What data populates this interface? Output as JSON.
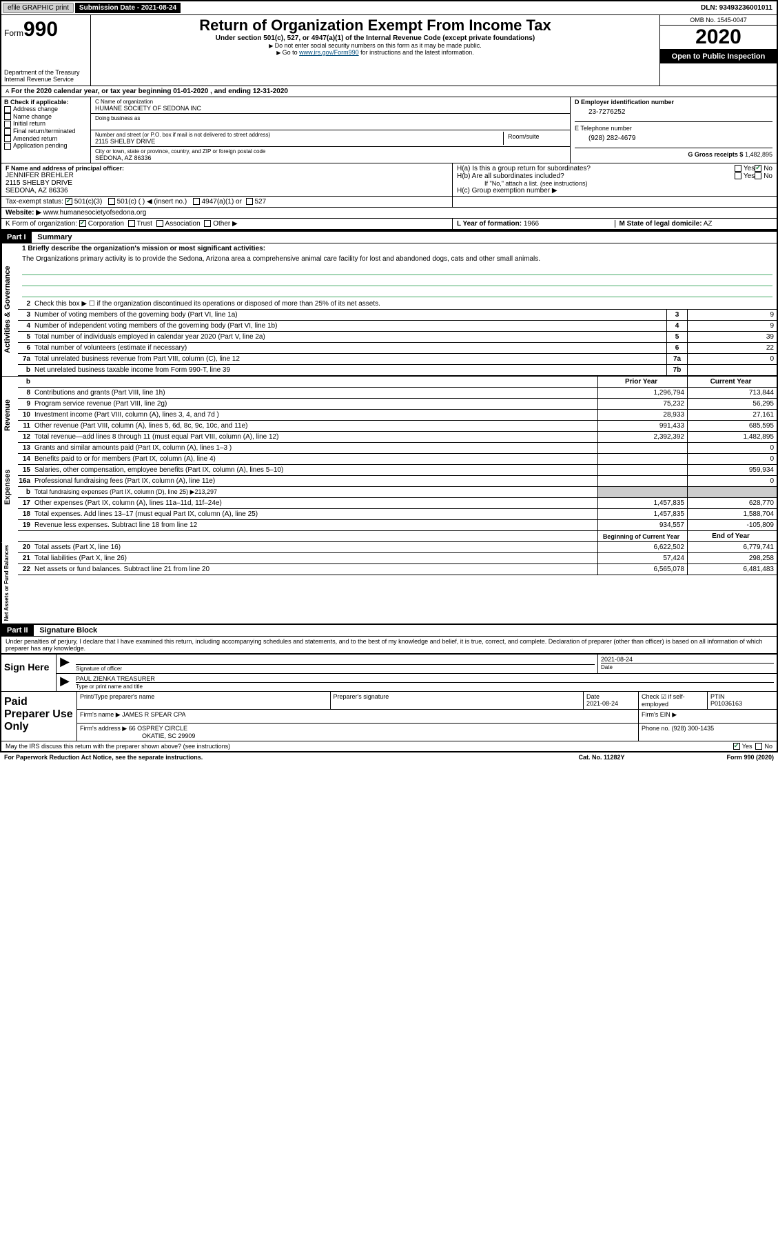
{
  "topbar": {
    "efile": "efile GRAPHIC print",
    "submission_label": "Submission Date - 2021-08-24",
    "dln": "DLN: 93493236001011"
  },
  "header": {
    "form_word": "Form",
    "form_num": "990",
    "dept1": "Department of the Treasury",
    "dept2": "Internal Revenue Service",
    "title": "Return of Organization Exempt From Income Tax",
    "sub": "Under section 501(c), 527, or 4947(a)(1) of the Internal Revenue Code (except private foundations)",
    "line1": "Do not enter social security numbers on this form as it may be made public.",
    "line2_pre": "Go to ",
    "line2_link": "www.irs.gov/Form990",
    "line2_post": " for instructions and the latest information.",
    "omb": "OMB No. 1545-0047",
    "year": "2020",
    "inspection": "Open to Public Inspection"
  },
  "lineA": "For the 2020 calendar year, or tax year beginning 01-01-2020    , and ending 12-31-2020",
  "boxB": {
    "label": "B Check if applicable:",
    "opts": [
      "Address change",
      "Name change",
      "Initial return",
      "Final return/terminated",
      "Amended return",
      "Application pending"
    ]
  },
  "boxC": {
    "label_name": "C Name of organization",
    "name": "HUMANE SOCIETY OF SEDONA INC",
    "dba_label": "Doing business as",
    "addr_label": "Number and street (or P.O. box if mail is not delivered to street address)",
    "room_label": "Room/suite",
    "addr": "2115 SHELBY DRIVE",
    "city_label": "City or town, state or province, country, and ZIP or foreign postal code",
    "city": "SEDONA, AZ  86336"
  },
  "boxD": {
    "label": "D Employer identification number",
    "val": "23-7276252"
  },
  "boxE": {
    "label": "E Telephone number",
    "val": "(928) 282-4679"
  },
  "boxG": {
    "label": "G Gross receipts $",
    "val": "1,482,895"
  },
  "boxF": {
    "label": "F  Name and address of principal officer:",
    "name": "JENNIFER BREHLER",
    "addr1": "2115 SHELBY DRIVE",
    "addr2": "SEDONA, AZ  86336"
  },
  "boxH": {
    "a": "H(a)  Is this a group return for subordinates?",
    "b": "H(b)  Are all subordinates included?",
    "b_note": "If \"No,\" attach a list. (see instructions)",
    "c": "H(c)  Group exemption number ▶",
    "yes": "Yes",
    "no": "No"
  },
  "boxI": {
    "label": "Tax-exempt status:",
    "o1": "501(c)(3)",
    "o2": "501(c) (  ) ◀ (insert no.)",
    "o3": "4947(a)(1) or",
    "o4": "527"
  },
  "boxJ": {
    "label": "Website: ▶",
    "val": "www.humanesocietyofsedona.org"
  },
  "boxK": {
    "label": "K Form of organization:",
    "o1": "Corporation",
    "o2": "Trust",
    "o3": "Association",
    "o4": "Other ▶"
  },
  "boxL": {
    "label": "L Year of formation:",
    "val": "1966"
  },
  "boxM": {
    "label": "M State of legal domicile:",
    "val": "AZ"
  },
  "part1": {
    "num": "Part I",
    "title": "Summary"
  },
  "mission": {
    "q": "1   Briefly describe the organization's mission or most significant activities:",
    "a": "The Organizations primary activity is to provide the Sedona, Arizona area a comprehensive animal care facility for lost and abandoned dogs, cats and other small animals."
  },
  "rows_ag": [
    {
      "n": "2",
      "d": "Check this box ▶ ☐  if the organization discontinued its operations or disposed of more than 25% of its net assets."
    },
    {
      "n": "3",
      "d": "Number of voting members of the governing body (Part VI, line 1a)",
      "box": "3",
      "v": "9"
    },
    {
      "n": "4",
      "d": "Number of independent voting members of the governing body (Part VI, line 1b)",
      "box": "4",
      "v": "9"
    },
    {
      "n": "5",
      "d": "Total number of individuals employed in calendar year 2020 (Part V, line 2a)",
      "box": "5",
      "v": "39"
    },
    {
      "n": "6",
      "d": "Total number of volunteers (estimate if necessary)",
      "box": "6",
      "v": "22"
    },
    {
      "n": "7a",
      "d": "Total unrelated business revenue from Part VIII, column (C), line 12",
      "box": "7a",
      "v": "0"
    },
    {
      "n": "b",
      "d": "Net unrelated business taxable income from Form 990-T, line 39",
      "box": "7b",
      "v": ""
    }
  ],
  "col_headers": {
    "prior": "Prior Year",
    "current": "Current Year"
  },
  "rows_rev": [
    {
      "n": "8",
      "d": "Contributions and grants (Part VIII, line 1h)",
      "p": "1,296,794",
      "c": "713,844"
    },
    {
      "n": "9",
      "d": "Program service revenue (Part VIII, line 2g)",
      "p": "75,232",
      "c": "56,295"
    },
    {
      "n": "10",
      "d": "Investment income (Part VIII, column (A), lines 3, 4, and 7d )",
      "p": "28,933",
      "c": "27,161"
    },
    {
      "n": "11",
      "d": "Other revenue (Part VIII, column (A), lines 5, 6d, 8c, 9c, 10c, and 11e)",
      "p": "991,433",
      "c": "685,595"
    },
    {
      "n": "12",
      "d": "Total revenue—add lines 8 through 11 (must equal Part VIII, column (A), line 12)",
      "p": "2,392,392",
      "c": "1,482,895"
    }
  ],
  "rows_exp": [
    {
      "n": "13",
      "d": "Grants and similar amounts paid (Part IX, column (A), lines 1–3 )",
      "p": "",
      "c": "0"
    },
    {
      "n": "14",
      "d": "Benefits paid to or for members (Part IX, column (A), line 4)",
      "p": "",
      "c": "0"
    },
    {
      "n": "15",
      "d": "Salaries, other compensation, employee benefits (Part IX, column (A), lines 5–10)",
      "p": "",
      "c": "959,934"
    },
    {
      "n": "16a",
      "d": "Professional fundraising fees (Part IX, column (A), line 11e)",
      "p": "",
      "c": "0"
    },
    {
      "n": "b",
      "d": "Total fundraising expenses (Part IX, column (D), line 25) ▶213,297",
      "grey": true
    },
    {
      "n": "17",
      "d": "Other expenses (Part IX, column (A), lines 11a–11d, 11f–24e)",
      "p": "1,457,835",
      "c": "628,770"
    },
    {
      "n": "18",
      "d": "Total expenses. Add lines 13–17 (must equal Part IX, column (A), line 25)",
      "p": "1,457,835",
      "c": "1,588,704"
    },
    {
      "n": "19",
      "d": "Revenue less expenses. Subtract line 18 from line 12",
      "p": "934,557",
      "c": "-105,809"
    }
  ],
  "col_headers2": {
    "beg": "Beginning of Current Year",
    "end": "End of Year"
  },
  "rows_net": [
    {
      "n": "20",
      "d": "Total assets (Part X, line 16)",
      "p": "6,622,502",
      "c": "6,779,741"
    },
    {
      "n": "21",
      "d": "Total liabilities (Part X, line 26)",
      "p": "57,424",
      "c": "298,258"
    },
    {
      "n": "22",
      "d": "Net assets or fund balances. Subtract line 21 from line 20",
      "p": "6,565,078",
      "c": "6,481,483"
    }
  ],
  "part2": {
    "num": "Part II",
    "title": "Signature Block"
  },
  "penalty": "Under penalties of perjury, I declare that I have examined this return, including accompanying schedules and statements, and to the best of my knowledge and belief, it is true, correct, and complete. Declaration of preparer (other than officer) is based on all information of which preparer has any knowledge.",
  "sign": {
    "label": "Sign Here",
    "sig_label": "Signature of officer",
    "date_label": "Date",
    "date": "2021-08-24",
    "name": "PAUL ZIENKA  TREASURER",
    "name_label": "Type or print name and title"
  },
  "prep": {
    "label": "Paid Preparer Use Only",
    "h1": "Print/Type preparer's name",
    "h2": "Preparer's signature",
    "h3": "Date",
    "h3v": "2021-08-24",
    "h4": "Check ☑ if self-employed",
    "h5": "PTIN",
    "h5v": "P01036163",
    "firm_label": "Firm's name    ▶",
    "firm": "JAMES R SPEAR CPA",
    "ein_label": "Firm's EIN ▶",
    "addr_label": "Firm's address ▶",
    "addr1": "66 OSPREY CIRCLE",
    "addr2": "OKATIE, SC  29909",
    "phone_label": "Phone no.",
    "phone": "(928) 300-1435"
  },
  "discuss": "May the IRS discuss this return with the preparer shown above? (see instructions)",
  "yes": "Yes",
  "no": "No",
  "footer": {
    "l": "For Paperwork Reduction Act Notice, see the separate instructions.",
    "m": "Cat. No. 11282Y",
    "r": "Form 990 (2020)"
  },
  "style": {
    "accent_link": "#004b7a",
    "black": "#000000",
    "grey": "#cccccc",
    "green_check": "#1a7a3a"
  }
}
